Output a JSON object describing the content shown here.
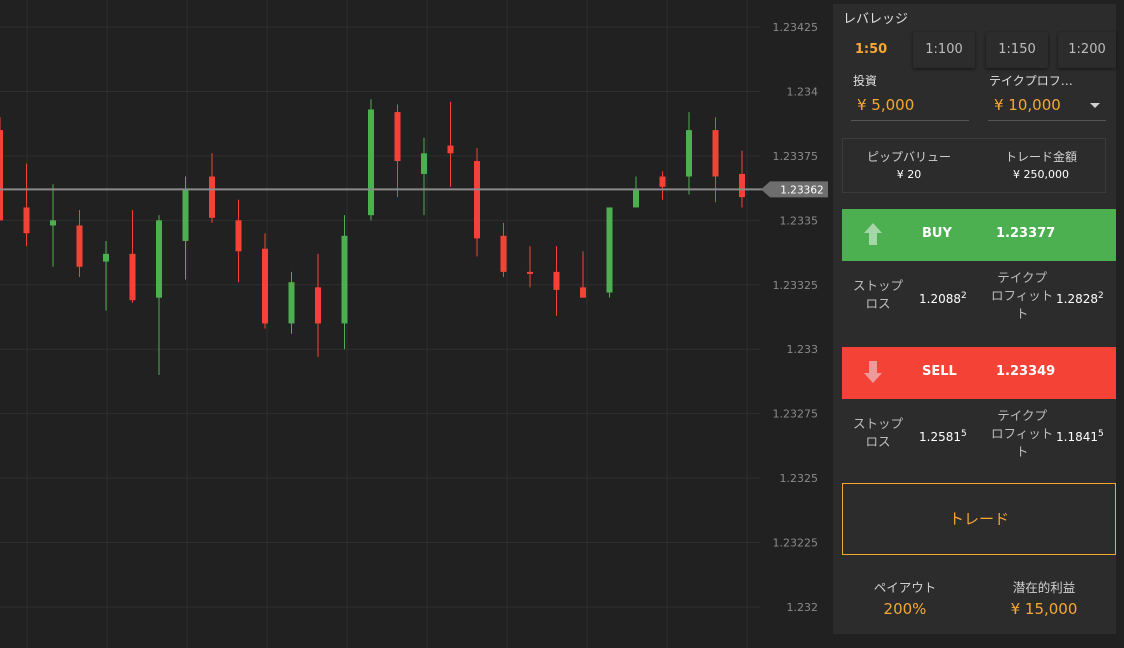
{
  "chart": {
    "price_axis": [
      "1.23425",
      "1.234",
      "1.23375",
      "1.2335",
      "1.23325",
      "1.233",
      "1.23275",
      "1.2325",
      "1.23225",
      "1.232"
    ],
    "current_price": "1.23362",
    "candles_note": "candlestick price chart"
  },
  "chart_data": {
    "type": "candlestick",
    "ylim": [
      1.232,
      1.23425
    ],
    "current_price": 1.23362,
    "candles": [
      {
        "o": 1.23385,
        "c": 1.2335,
        "h": 1.2339,
        "l": 1.2335,
        "dir": "down"
      },
      {
        "o": 1.23355,
        "c": 1.23345,
        "h": 1.23372,
        "l": 1.2334,
        "dir": "down"
      },
      {
        "o": 1.23348,
        "c": 1.2335,
        "h": 1.23364,
        "l": 1.23332,
        "dir": "up"
      },
      {
        "o": 1.23348,
        "c": 1.23332,
        "h": 1.23354,
        "l": 1.23328,
        "dir": "down"
      },
      {
        "o": 1.23334,
        "c": 1.23337,
        "h": 1.23342,
        "l": 1.23315,
        "dir": "up"
      },
      {
        "o": 1.23337,
        "c": 1.23319,
        "h": 1.23354,
        "l": 1.23318,
        "dir": "down"
      },
      {
        "o": 1.2332,
        "c": 1.2335,
        "h": 1.23352,
        "l": 1.2329,
        "dir": "up"
      },
      {
        "o": 1.23342,
        "c": 1.23362,
        "h": 1.23367,
        "l": 1.23327,
        "dir": "up"
      },
      {
        "o": 1.23367,
        "c": 1.23351,
        "h": 1.23376,
        "l": 1.23349,
        "dir": "down"
      },
      {
        "o": 1.2335,
        "c": 1.23338,
        "h": 1.23358,
        "l": 1.23326,
        "dir": "down"
      },
      {
        "o": 1.23339,
        "c": 1.2331,
        "h": 1.23345,
        "l": 1.23308,
        "dir": "down"
      },
      {
        "o": 1.2331,
        "c": 1.23326,
        "h": 1.2333,
        "l": 1.23306,
        "dir": "up"
      },
      {
        "o": 1.23324,
        "c": 1.2331,
        "h": 1.23337,
        "l": 1.23297,
        "dir": "down"
      },
      {
        "o": 1.2331,
        "c": 1.23344,
        "h": 1.23352,
        "l": 1.233,
        "dir": "up"
      },
      {
        "o": 1.23352,
        "c": 1.23393,
        "h": 1.23397,
        "l": 1.2335,
        "dir": "up"
      },
      {
        "o": 1.23392,
        "c": 1.23373,
        "h": 1.23395,
        "l": 1.23359,
        "dir": "down"
      },
      {
        "o": 1.23368,
        "c": 1.23376,
        "h": 1.23382,
        "l": 1.23352,
        "dir": "up"
      },
      {
        "o": 1.23379,
        "c": 1.23376,
        "h": 1.23396,
        "l": 1.23363,
        "dir": "down"
      },
      {
        "o": 1.23373,
        "c": 1.23343,
        "h": 1.23378,
        "l": 1.23336,
        "dir": "down"
      },
      {
        "o": 1.23344,
        "c": 1.2333,
        "h": 1.23349,
        "l": 1.23328,
        "dir": "down"
      },
      {
        "o": 1.2333,
        "c": 1.2333,
        "h": 1.2334,
        "l": 1.23324,
        "dir": "down"
      },
      {
        "o": 1.2333,
        "c": 1.23323,
        "h": 1.2334,
        "l": 1.23313,
        "dir": "down"
      },
      {
        "o": 1.23324,
        "c": 1.2332,
        "h": 1.23338,
        "l": 1.2332,
        "dir": "down"
      },
      {
        "o": 1.23322,
        "c": 1.23355,
        "h": 1.23355,
        "l": 1.2332,
        "dir": "up"
      },
      {
        "o": 1.23355,
        "c": 1.23362,
        "h": 1.23367,
        "l": 1.23355,
        "dir": "up"
      },
      {
        "o": 1.23367,
        "c": 1.23363,
        "h": 1.23369,
        "l": 1.23358,
        "dir": "down"
      },
      {
        "o": 1.23367,
        "c": 1.23385,
        "h": 1.23392,
        "l": 1.2336,
        "dir": "up"
      },
      {
        "o": 1.23385,
        "c": 1.23367,
        "h": 1.2339,
        "l": 1.23357,
        "dir": "down"
      },
      {
        "o": 1.23368,
        "c": 1.23359,
        "h": 1.23377,
        "l": 1.23355,
        "dir": "down"
      }
    ]
  },
  "panel": {
    "leverage_title": "レバレッジ",
    "leverage_options": [
      "1:50",
      "1:100",
      "1:150",
      "1:200"
    ],
    "investment_label": "投資",
    "investment_value": "¥ 5,000",
    "takeprofit_label": "テイクプロフ…",
    "takeprofit_value": "¥ 10,000",
    "pip_value_title": "ピップバリュー",
    "pip_value": "¥ 20",
    "trade_amount_title": "トレード金額",
    "trade_amount": "¥ 250,000",
    "buy_label": "BUY",
    "buy_price": "1.23377",
    "sell_label": "SELL",
    "sell_price": "1.23349",
    "stoploss_label_1": "ストップ",
    "stoploss_label_2": "ロス",
    "takeprofit_label_1": "テイクプ",
    "takeprofit_label_2": "ロフィット",
    "takeprofit_label_3": "ト",
    "buy_stoploss": {
      "main": "1.2088",
      "sup": "2"
    },
    "buy_takeprofit": {
      "main": "1.2828",
      "sup": "2"
    },
    "sell_stoploss": {
      "main": "1.2581",
      "sup": "5"
    },
    "sell_takeprofit": {
      "main": "1.1841",
      "sup": "5"
    },
    "trade_button": "トレード",
    "payout_title": "ペイアウト",
    "payout_value": "200%",
    "potential_profit_title": "潜在的利益",
    "potential_profit_value": "¥ 15,000"
  },
  "colors": {
    "up": "#4caf50",
    "down": "#f44336",
    "accent": "#f6a832"
  }
}
